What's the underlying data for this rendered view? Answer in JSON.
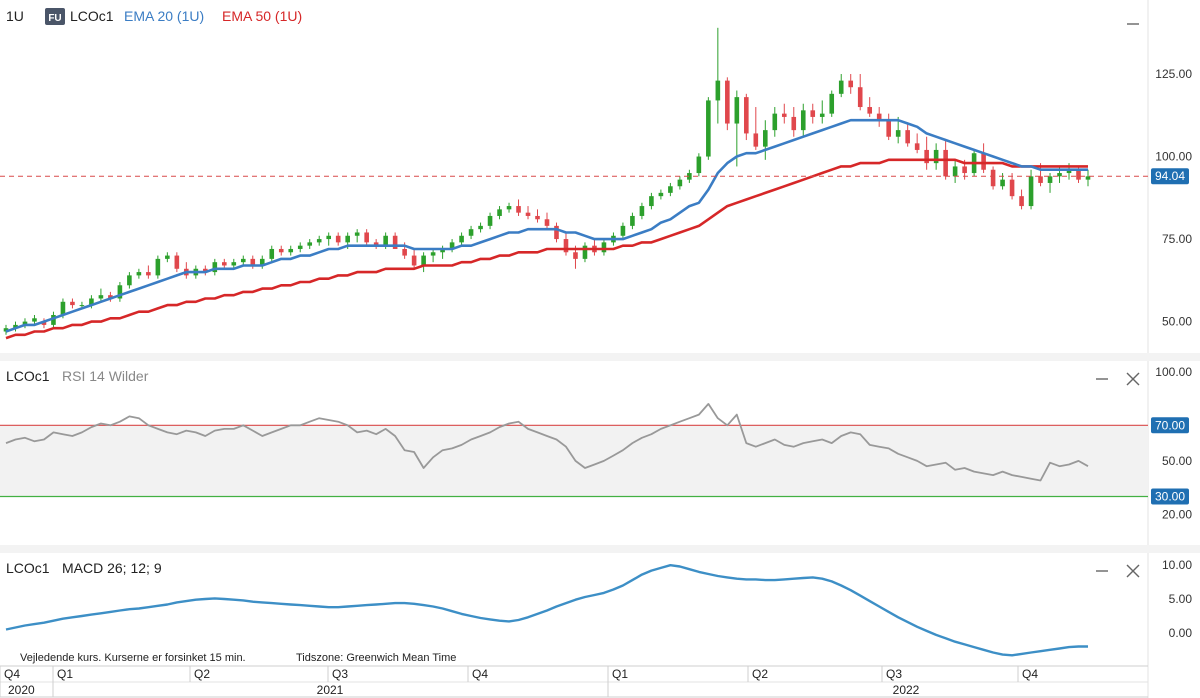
{
  "header": {
    "interval": "1U",
    "badge": "FU",
    "symbol": "LCOc1",
    "ema20_label": "EMA 20 (1U)",
    "ema50_label": "EMA 50 (1U)"
  },
  "colors": {
    "up": "#2ca02c",
    "down": "#e0474c",
    "ema20": "#3b7dc4",
    "ema50": "#d62728",
    "rsi": "#999999",
    "macd": "#3d8fc6",
    "price_tag": "#1f6fb2",
    "badge": "#4a5568"
  },
  "price_panel": {
    "y_ticks": [
      "125.00",
      "100.00",
      "75.00",
      "50.00"
    ],
    "y_tick_values": [
      125,
      100,
      75,
      50
    ],
    "ylim": [
      42,
      145
    ],
    "last_price": "94.04",
    "last_price_value": 94.04,
    "minimize_icon": "minimize-icon"
  },
  "rsi_panel": {
    "title_symbol": "LCOc1",
    "title_indicator": "RSI 14 Wilder",
    "y_ticks": [
      "100.00",
      "70.00",
      "50.00",
      "30.00",
      "20.00"
    ],
    "y_tick_values": [
      100,
      70,
      50,
      30,
      20
    ],
    "ylim": [
      5,
      105
    ],
    "overbought": "70.00",
    "oversold": "30.00"
  },
  "macd_panel": {
    "title_symbol": "LCOc1",
    "title_indicator": "MACD 26; 12; 9",
    "y_ticks": [
      "10.00",
      "5.00",
      "0.00"
    ],
    "y_tick_values": [
      10,
      5,
      0
    ],
    "ylim": [
      -4,
      11.5
    ]
  },
  "footer": {
    "disclaimer": "Vejledende kurs. Kurserne er forsinket 15 min.",
    "timezone": "Tidszone: Greenwich Mean Time"
  },
  "time_axis": {
    "quarters": [
      "Q4",
      "Q1",
      "Q2",
      "Q3",
      "Q4",
      "Q1",
      "Q2",
      "Q3",
      "Q4"
    ],
    "years": [
      "2020",
      "2021",
      "2022"
    ]
  },
  "chart_data": {
    "type": "candlestick",
    "interval": "1 week",
    "candles": [
      [
        47,
        49,
        46,
        48
      ],
      [
        48,
        50,
        47,
        49
      ],
      [
        49,
        51,
        48,
        50
      ],
      [
        50,
        52,
        49,
        51
      ],
      [
        50,
        51,
        48,
        49
      ],
      [
        49,
        53,
        48,
        52
      ],
      [
        52,
        57,
        51,
        56
      ],
      [
        56,
        57,
        54,
        55
      ],
      [
        55,
        56,
        54,
        55
      ],
      [
        55,
        58,
        54,
        57
      ],
      [
        57,
        60,
        56,
        58
      ],
      [
        58,
        59,
        56,
        57
      ],
      [
        57,
        62,
        56,
        61
      ],
      [
        61,
        65,
        60,
        64
      ],
      [
        64,
        66,
        63,
        65
      ],
      [
        65,
        67,
        63,
        64
      ],
      [
        64,
        70,
        63,
        69
      ],
      [
        69,
        71,
        68,
        70
      ],
      [
        70,
        71,
        65,
        66
      ],
      [
        66,
        68,
        63,
        64
      ],
      [
        64,
        67,
        63,
        66
      ],
      [
        66,
        67,
        64,
        65
      ],
      [
        65,
        69,
        64,
        68
      ],
      [
        68,
        69,
        66,
        67
      ],
      [
        67,
        69,
        66,
        68
      ],
      [
        68,
        70,
        67,
        69
      ],
      [
        69,
        70,
        66,
        67
      ],
      [
        67,
        70,
        66,
        69
      ],
      [
        69,
        73,
        68,
        72
      ],
      [
        72,
        73,
        70,
        71
      ],
      [
        71,
        73,
        70,
        72
      ],
      [
        72,
        74,
        71,
        73
      ],
      [
        73,
        75,
        72,
        74
      ],
      [
        74,
        76,
        73,
        75
      ],
      [
        75,
        77,
        73,
        76
      ],
      [
        76,
        77,
        73,
        74
      ],
      [
        74,
        77,
        72,
        76
      ],
      [
        76,
        78,
        74,
        77
      ],
      [
        77,
        78,
        73,
        74
      ],
      [
        74,
        75,
        72,
        73
      ],
      [
        73,
        77,
        72,
        76
      ],
      [
        76,
        77,
        72,
        72
      ],
      [
        72,
        74,
        69,
        70
      ],
      [
        70,
        72,
        66,
        67
      ],
      [
        67,
        71,
        65,
        70
      ],
      [
        70,
        72,
        68,
        71
      ],
      [
        71,
        73,
        69,
        72
      ],
      [
        72,
        75,
        71,
        74
      ],
      [
        74,
        77,
        73,
        76
      ],
      [
        76,
        79,
        75,
        78
      ],
      [
        78,
        80,
        77,
        79
      ],
      [
        79,
        83,
        78,
        82
      ],
      [
        82,
        85,
        81,
        84
      ],
      [
        84,
        86,
        83,
        85
      ],
      [
        85,
        87,
        82,
        83
      ],
      [
        83,
        85,
        81,
        82
      ],
      [
        82,
        84,
        80,
        81
      ],
      [
        81,
        83,
        78,
        79
      ],
      [
        79,
        80,
        74,
        75
      ],
      [
        75,
        77,
        70,
        71
      ],
      [
        71,
        73,
        66,
        69
      ],
      [
        69,
        74,
        68,
        73
      ],
      [
        73,
        75,
        70,
        71
      ],
      [
        71,
        75,
        70,
        74
      ],
      [
        74,
        77,
        73,
        76
      ],
      [
        76,
        80,
        75,
        79
      ],
      [
        79,
        83,
        78,
        82
      ],
      [
        82,
        86,
        81,
        85
      ],
      [
        85,
        89,
        84,
        88
      ],
      [
        88,
        90,
        87,
        89
      ],
      [
        89,
        92,
        88,
        91
      ],
      [
        91,
        94,
        90,
        93
      ],
      [
        93,
        96,
        92,
        95
      ],
      [
        95,
        101,
        94,
        100
      ],
      [
        100,
        118,
        99,
        117
      ],
      [
        117,
        139,
        110,
        123
      ],
      [
        123,
        124,
        108,
        110
      ],
      [
        110,
        120,
        97,
        118
      ],
      [
        118,
        119,
        105,
        107
      ],
      [
        107,
        115,
        102,
        103
      ],
      [
        103,
        111,
        99,
        108
      ],
      [
        108,
        115,
        106,
        113
      ],
      [
        113,
        116,
        110,
        112
      ],
      [
        112,
        115,
        106,
        108
      ],
      [
        108,
        116,
        106,
        114
      ],
      [
        114,
        116,
        110,
        112
      ],
      [
        112,
        117,
        110,
        113
      ],
      [
        113,
        120,
        112,
        119
      ],
      [
        119,
        125,
        118,
        123
      ],
      [
        123,
        125,
        119,
        121
      ],
      [
        121,
        125,
        114,
        115
      ],
      [
        115,
        118,
        112,
        113
      ],
      [
        113,
        115,
        109,
        111
      ],
      [
        111,
        113,
        105,
        106
      ],
      [
        106,
        112,
        104,
        108
      ],
      [
        108,
        110,
        103,
        104
      ],
      [
        104,
        107,
        101,
        102
      ],
      [
        102,
        106,
        96,
        98
      ],
      [
        98,
        104,
        96,
        102
      ],
      [
        102,
        105,
        93,
        94
      ],
      [
        94,
        99,
        92,
        97
      ],
      [
        97,
        99,
        93,
        95
      ],
      [
        95,
        102,
        94,
        101
      ],
      [
        101,
        104,
        95,
        96
      ],
      [
        96,
        97,
        90,
        91
      ],
      [
        91,
        95,
        90,
        93
      ],
      [
        93,
        95,
        87,
        88
      ],
      [
        88,
        90,
        84,
        85
      ],
      [
        85,
        96,
        84,
        94
      ],
      [
        94,
        98,
        91,
        92
      ],
      [
        92,
        95,
        89,
        94
      ],
      [
        94,
        97,
        92,
        95
      ],
      [
        95,
        98,
        93,
        96
      ],
      [
        96,
        97,
        92,
        93
      ],
      [
        93,
        96,
        91,
        94
      ]
    ],
    "ema20": [
      47,
      48,
      49,
      49,
      50,
      51,
      52,
      53,
      54,
      55,
      56,
      57,
      58,
      59,
      60,
      61,
      62,
      63,
      64,
      65,
      65,
      65,
      66,
      66,
      66,
      67,
      67,
      67,
      68,
      69,
      69,
      70,
      70,
      71,
      72,
      72,
      73,
      73,
      73,
      73,
      73,
      73,
      73,
      72,
      72,
      72,
      72,
      72,
      73,
      73,
      74,
      75,
      76,
      77,
      77,
      78,
      78,
      78,
      78,
      77,
      77,
      76,
      75,
      75,
      75,
      75,
      76,
      77,
      78,
      80,
      81,
      83,
      85,
      86,
      90,
      95,
      98,
      100,
      101,
      101,
      102,
      103,
      104,
      105,
      106,
      107,
      108,
      109,
      110,
      111,
      111,
      111,
      111,
      111,
      111,
      110,
      109,
      107,
      106,
      105,
      104,
      103,
      102,
      101,
      100,
      99,
      98,
      97,
      97,
      96,
      96,
      96,
      96,
      96,
      96
    ],
    "ema50": [
      45,
      46,
      46,
      47,
      47,
      48,
      48,
      49,
      49,
      50,
      50,
      51,
      51,
      52,
      53,
      53,
      54,
      55,
      55,
      56,
      56,
      57,
      57,
      58,
      58,
      59,
      59,
      60,
      60,
      61,
      61,
      62,
      62,
      63,
      63,
      64,
      64,
      65,
      65,
      65,
      66,
      66,
      66,
      66,
      67,
      67,
      67,
      67,
      68,
      68,
      69,
      69,
      70,
      70,
      71,
      71,
      71,
      72,
      72,
      72,
      72,
      72,
      72,
      72,
      72,
      73,
      73,
      74,
      74,
      75,
      76,
      77,
      78,
      79,
      81,
      83,
      85,
      86,
      87,
      88,
      89,
      90,
      91,
      92,
      93,
      94,
      95,
      96,
      97,
      97,
      98,
      98,
      98,
      99,
      99,
      99,
      99,
      99,
      99,
      99,
      99,
      98,
      98,
      98,
      98,
      98,
      97,
      97,
      97,
      97,
      97,
      97,
      97,
      97,
      97
    ],
    "rsi": [
      60,
      62,
      63,
      61,
      62,
      66,
      65,
      64,
      66,
      69,
      71,
      70,
      72,
      75,
      74,
      70,
      68,
      66,
      65,
      67,
      66,
      64,
      67,
      68,
      68,
      70,
      67,
      64,
      66,
      68,
      70,
      70,
      72,
      74,
      73,
      72,
      70,
      66,
      67,
      65,
      68,
      64,
      56,
      55,
      46,
      52,
      56,
      57,
      59,
      62,
      64,
      66,
      69,
      71,
      72,
      68,
      66,
      64,
      62,
      58,
      50,
      46,
      48,
      50,
      53,
      56,
      60,
      63,
      65,
      68,
      70,
      72,
      74,
      76,
      82,
      74,
      70,
      76,
      60,
      58,
      60,
      62,
      59,
      58,
      60,
      61,
      62,
      60,
      64,
      66,
      65,
      59,
      58,
      57,
      54,
      52,
      50,
      47,
      48,
      49,
      45,
      46,
      44,
      43,
      42,
      44,
      42,
      41,
      40,
      39,
      49,
      47,
      48,
      50,
      47
    ],
    "macd": [
      0.5,
      0.8,
      1.1,
      1.3,
      1.5,
      1.8,
      2.1,
      2.3,
      2.5,
      2.7,
      2.9,
      3.1,
      3.3,
      3.5,
      3.6,
      3.8,
      4.0,
      4.2,
      4.5,
      4.7,
      4.9,
      5.0,
      5.1,
      5.0,
      4.9,
      4.8,
      4.6,
      4.5,
      4.4,
      4.3,
      4.2,
      4.1,
      4.0,
      3.9,
      3.8,
      3.8,
      3.9,
      4.0,
      4.1,
      4.2,
      4.3,
      4.4,
      4.4,
      4.3,
      4.1,
      3.9,
      3.6,
      3.2,
      2.8,
      2.5,
      2.2,
      2.0,
      1.8,
      1.7,
      1.9,
      2.3,
      2.8,
      3.3,
      3.9,
      4.4,
      4.9,
      5.3,
      5.6,
      5.9,
      6.4,
      7.0,
      7.8,
      8.6,
      9.2,
      9.6,
      10.0,
      9.8,
      9.4,
      9.0,
      8.7,
      8.4,
      8.2,
      8.0,
      7.9,
      7.9,
      7.8,
      7.8,
      7.9,
      8.0,
      8.1,
      8.2,
      8.0,
      7.6,
      7.0,
      6.3,
      5.5,
      4.7,
      3.9,
      3.1,
      2.3,
      1.6,
      0.9,
      0.3,
      -0.3,
      -0.8,
      -1.3,
      -1.7,
      -2.1,
      -2.5,
      -2.9,
      -3.2,
      -3.3,
      -3.1,
      -2.9,
      -2.7,
      -2.5,
      -2.3,
      -2.1,
      -2.0,
      -2.0
    ]
  }
}
